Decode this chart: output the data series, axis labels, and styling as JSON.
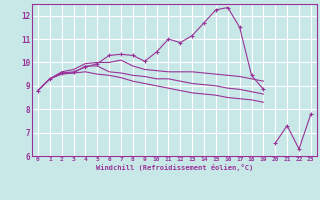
{
  "bg_color": "#c8e8e8",
  "grid_color": "#ffffff",
  "line_color": "#993399",
  "xlabel": "Windchill (Refroidissement éolien,°C)",
  "tick_color": "#993399",
  "ylim": [
    6,
    12.5
  ],
  "xlim": [
    -0.5,
    23.5
  ],
  "yticks": [
    6,
    7,
    8,
    9,
    10,
    11,
    12
  ],
  "xticks": [
    0,
    1,
    2,
    3,
    4,
    5,
    6,
    7,
    8,
    9,
    10,
    11,
    12,
    13,
    14,
    15,
    16,
    17,
    18,
    19,
    20,
    21,
    22,
    23
  ],
  "series": [
    [
      8.8,
      9.3,
      9.55,
      9.6,
      9.8,
      9.95,
      10.3,
      10.35,
      10.3,
      10.05,
      10.45,
      11.0,
      10.85,
      11.15,
      11.7,
      12.25,
      12.35,
      11.5,
      9.45,
      8.85,
      null,
      null,
      null,
      null
    ],
    [
      8.8,
      9.3,
      9.6,
      9.7,
      9.95,
      10.0,
      10.0,
      10.1,
      9.85,
      9.7,
      9.65,
      9.6,
      9.6,
      9.6,
      9.55,
      9.5,
      9.45,
      9.4,
      9.3,
      9.2,
      null,
      null,
      null,
      null
    ],
    [
      8.8,
      9.3,
      9.5,
      9.55,
      9.6,
      9.5,
      9.45,
      9.35,
      9.2,
      9.1,
      9.0,
      8.9,
      8.8,
      8.7,
      8.65,
      8.6,
      8.5,
      8.45,
      8.4,
      8.3,
      null,
      null,
      null,
      null
    ],
    [
      8.8,
      9.3,
      9.55,
      9.55,
      9.85,
      9.85,
      9.6,
      9.55,
      9.45,
      9.4,
      9.3,
      9.3,
      9.2,
      9.1,
      9.05,
      9.0,
      8.9,
      8.85,
      8.75,
      8.65,
      null,
      null,
      null,
      null
    ],
    [
      null,
      null,
      null,
      null,
      null,
      null,
      null,
      null,
      null,
      null,
      null,
      null,
      null,
      null,
      null,
      null,
      null,
      null,
      null,
      null,
      6.55,
      7.3,
      6.3,
      7.8
    ]
  ],
  "has_markers": [
    true,
    false,
    false,
    false,
    true
  ]
}
